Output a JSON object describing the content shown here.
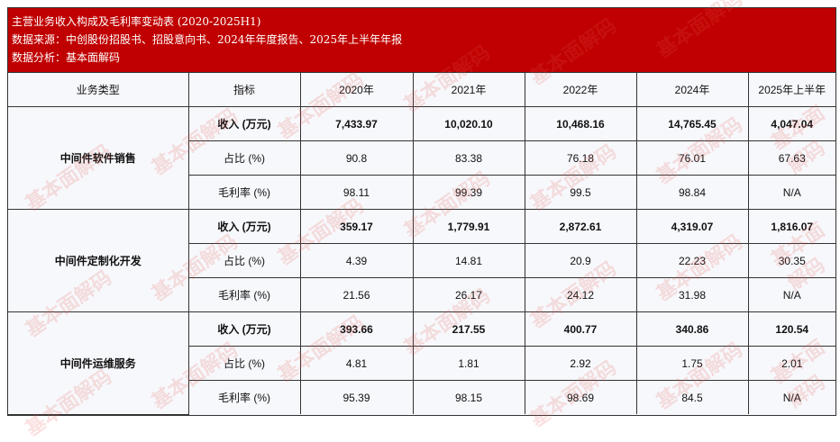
{
  "header": {
    "title": "主营业务收入构成及毛利率变动表 (2020-2025H1)",
    "source": "数据来源：中创股份招股书、招股意向书、2024年年度报告、2025年上半年年报",
    "analysis": "数据分析：基本面解码"
  },
  "watermark": "基本面解码",
  "columns": [
    "业务类型",
    "指标",
    "2020年",
    "2021年",
    "2022年",
    "2024年",
    "2025年上半年"
  ],
  "groups": [
    {
      "name": "中间件软件销售",
      "rows": [
        {
          "metric": "收入 (万元)",
          "values": [
            "7,433.97",
            "10,020.10",
            "10,468.16",
            "14,765.45",
            "4,047.04"
          ]
        },
        {
          "metric": "占比 (%)",
          "values": [
            "90.8",
            "83.38",
            "76.18",
            "76.01",
            "67.63"
          ]
        },
        {
          "metric": "毛利率 (%)",
          "values": [
            "98.11",
            "99.39",
            "99.5",
            "98.84",
            "N/A"
          ]
        }
      ]
    },
    {
      "name": "中间件定制化开发",
      "rows": [
        {
          "metric": "收入 (万元)",
          "values": [
            "359.17",
            "1,779.91",
            "2,872.61",
            "4,319.07",
            "1,816.07"
          ]
        },
        {
          "metric": "占比 (%)",
          "values": [
            "4.39",
            "14.81",
            "20.9",
            "22.23",
            "30.35"
          ]
        },
        {
          "metric": "毛利率 (%)",
          "values": [
            "21.56",
            "26.17",
            "24.12",
            "31.98",
            "N/A"
          ]
        }
      ]
    },
    {
      "name": "中间件运维服务",
      "rows": [
        {
          "metric": "收入 (万元)",
          "values": [
            "393.66",
            "217.55",
            "400.77",
            "340.86",
            "120.54"
          ]
        },
        {
          "metric": "占比 (%)",
          "values": [
            "4.81",
            "1.81",
            "2.92",
            "1.75",
            "2.01"
          ]
        },
        {
          "metric": "毛利率 (%)",
          "values": [
            "95.39",
            "98.15",
            "98.69",
            "84.5",
            "N/A"
          ]
        }
      ]
    }
  ],
  "colors": {
    "header_bg": "#c00000",
    "table_bg": "#f7f8fc"
  }
}
